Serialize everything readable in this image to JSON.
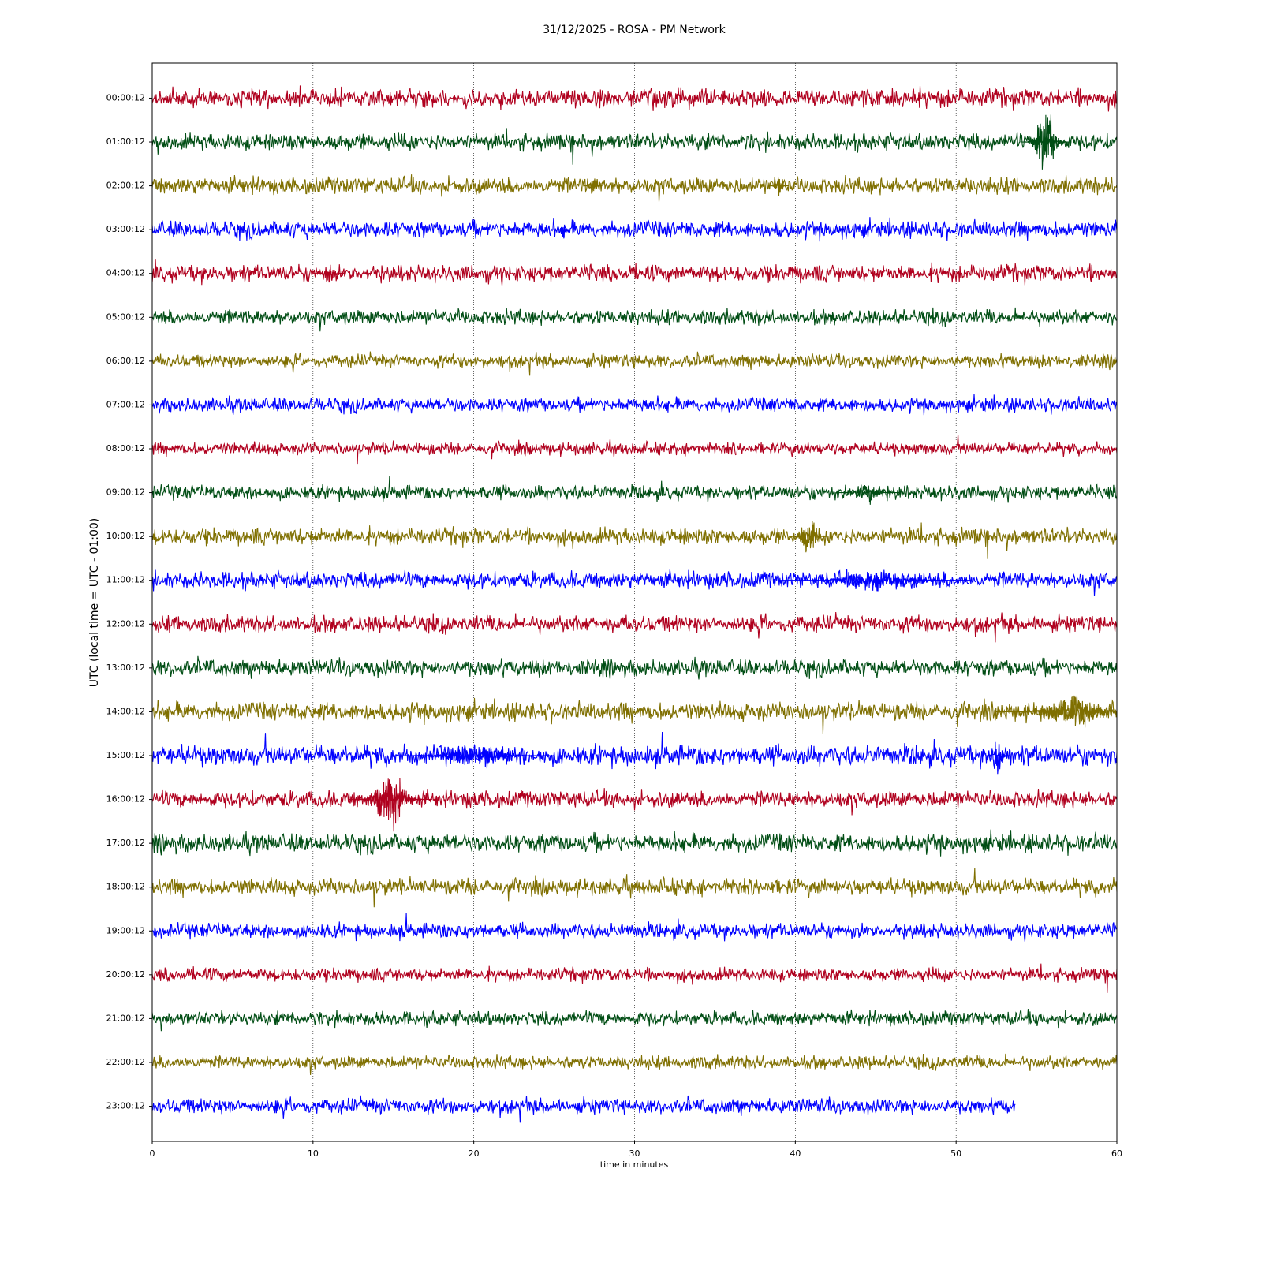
{
  "chart_data": {
    "type": "helicorder",
    "title": "31/12/2025 - ROSA - PM Network",
    "xlabel": "time in minutes",
    "ylabel": "UTC (local time = UTC - 01:00)",
    "xlim": [
      0,
      60
    ],
    "xticks": [
      0,
      10,
      20,
      30,
      40,
      50,
      60
    ],
    "grid": true,
    "rows": [
      {
        "label": "00:00:12",
        "color": "#b0001e",
        "amplitude": 0.22,
        "end": 60,
        "events": []
      },
      {
        "label": "01:00:12",
        "color": "#004d14",
        "amplitude": 0.2,
        "end": 60,
        "events": [
          {
            "x": 55.6,
            "width": 0.8,
            "amplitude": 1.0
          }
        ]
      },
      {
        "label": "02:00:12",
        "color": "#7f6f00",
        "amplitude": 0.2,
        "end": 60,
        "events": [
          {
            "x": 27.4,
            "width": 0.3,
            "amplitude": 0.3
          },
          {
            "x": 39,
            "width": 0.3,
            "amplitude": 0.3
          }
        ]
      },
      {
        "label": "03:00:12",
        "color": "#0000ff",
        "amplitude": 0.2,
        "end": 60,
        "events": [
          {
            "x": 25.6,
            "width": 0.2,
            "amplitude": 0.3
          }
        ]
      },
      {
        "label": "04:00:12",
        "color": "#b0001e",
        "amplitude": 0.2,
        "end": 60,
        "events": [
          {
            "x": 11,
            "width": 0.5,
            "amplitude": 0.3
          }
        ]
      },
      {
        "label": "05:00:12",
        "color": "#004d14",
        "amplitude": 0.18,
        "end": 60,
        "events": []
      },
      {
        "label": "06:00:12",
        "color": "#7f6f00",
        "amplitude": 0.16,
        "end": 60,
        "events": []
      },
      {
        "label": "07:00:12",
        "color": "#0000ff",
        "amplitude": 0.17,
        "end": 60,
        "events": []
      },
      {
        "label": "08:00:12",
        "color": "#b0001e",
        "amplitude": 0.15,
        "end": 60,
        "events": []
      },
      {
        "label": "09:00:12",
        "color": "#004d14",
        "amplitude": 0.17,
        "end": 60,
        "events": [
          {
            "x": 44.5,
            "width": 1,
            "amplitude": 0.3
          }
        ]
      },
      {
        "label": "10:00:12",
        "color": "#7f6f00",
        "amplitude": 0.2,
        "end": 60,
        "events": [
          {
            "x": 40.8,
            "width": 0.6,
            "amplitude": 0.7
          }
        ]
      },
      {
        "label": "11:00:12",
        "color": "#0000ff",
        "amplitude": 0.2,
        "end": 60,
        "events": [
          {
            "x": 45,
            "width": 3,
            "amplitude": 0.3
          }
        ]
      },
      {
        "label": "12:00:12",
        "color": "#b0001e",
        "amplitude": 0.2,
        "end": 60,
        "events": []
      },
      {
        "label": "13:00:12",
        "color": "#004d14",
        "amplitude": 0.2,
        "end": 60,
        "events": []
      },
      {
        "label": "14:00:12",
        "color": "#7f6f00",
        "amplitude": 0.22,
        "end": 60,
        "events": [
          {
            "x": 57.5,
            "width": 2.5,
            "amplitude": 0.45
          }
        ]
      },
      {
        "label": "15:00:12",
        "color": "#0000ff",
        "amplitude": 0.24,
        "end": 60,
        "events": [
          {
            "x": 20,
            "width": 2.5,
            "amplitude": 0.35
          },
          {
            "x": 52.6,
            "width": 0.4,
            "amplitude": 0.7
          }
        ]
      },
      {
        "label": "16:00:12",
        "color": "#b0001e",
        "amplitude": 0.2,
        "end": 60,
        "events": [
          {
            "x": 14.8,
            "width": 1.3,
            "amplitude": 0.85
          }
        ]
      },
      {
        "label": "17:00:12",
        "color": "#004d14",
        "amplitude": 0.22,
        "end": 60,
        "events": []
      },
      {
        "label": "18:00:12",
        "color": "#7f6f00",
        "amplitude": 0.2,
        "end": 60,
        "events": []
      },
      {
        "label": "19:00:12",
        "color": "#0000ff",
        "amplitude": 0.18,
        "end": 60,
        "events": []
      },
      {
        "label": "20:00:12",
        "color": "#b0001e",
        "amplitude": 0.16,
        "end": 60,
        "events": []
      },
      {
        "label": "21:00:12",
        "color": "#004d14",
        "amplitude": 0.17,
        "end": 60,
        "events": []
      },
      {
        "label": "22:00:12",
        "color": "#7f6f00",
        "amplitude": 0.16,
        "end": 60,
        "events": []
      },
      {
        "label": "23:00:12",
        "color": "#0000ff",
        "amplitude": 0.18,
        "end": 53.7,
        "events": []
      }
    ]
  }
}
